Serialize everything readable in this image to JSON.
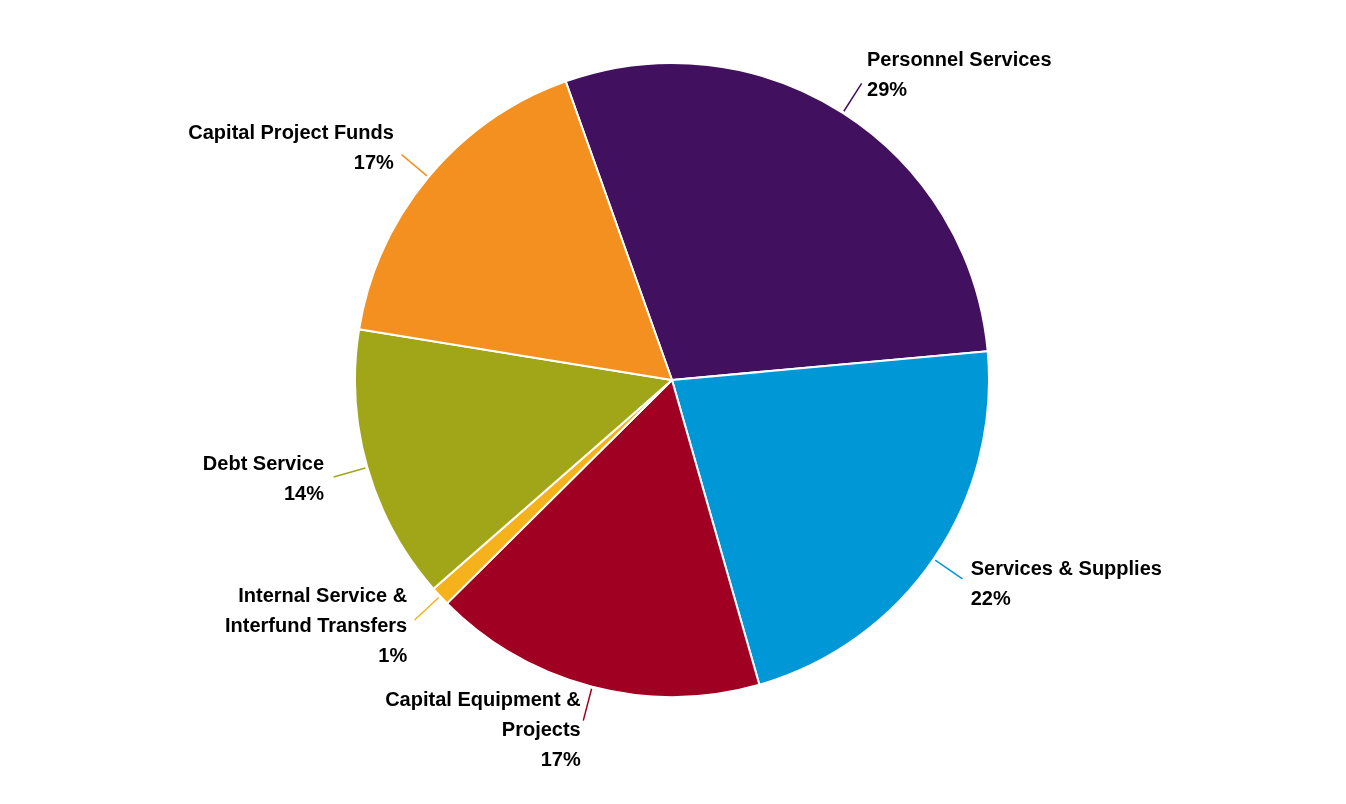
{
  "chart_data": {
    "type": "pie",
    "categories": [
      "Personnel Services",
      "Services & Supplies",
      "Capital Equipment & Projects",
      "Internal Service & Interfund Transfers",
      "Debt Service",
      "Capital Project Funds"
    ],
    "values": [
      29,
      22,
      17,
      1,
      14,
      17
    ],
    "value_labels": [
      "29%",
      "22%",
      "17%",
      "1%",
      "14%",
      "17%"
    ],
    "colors": [
      "#41105e",
      "#0097d6",
      "#a00022",
      "#f6b21b",
      "#a1a619",
      "#f39020"
    ],
    "legend": false
  }
}
